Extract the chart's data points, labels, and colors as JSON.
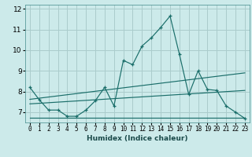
{
  "xlabel": "Humidex (Indice chaleur)",
  "bg_color": "#cceaea",
  "grid_color": "#aacccc",
  "line_color": "#1a6e6a",
  "xlim": [
    -0.5,
    23.5
  ],
  "ylim": [
    6.5,
    12.2
  ],
  "yticks": [
    7,
    8,
    9,
    10,
    11,
    12
  ],
  "xticks": [
    0,
    1,
    2,
    3,
    4,
    5,
    6,
    7,
    8,
    9,
    10,
    11,
    12,
    13,
    14,
    15,
    16,
    17,
    18,
    19,
    20,
    21,
    22,
    23
  ],
  "main_x": [
    0,
    1,
    2,
    3,
    4,
    5,
    6,
    7,
    8,
    9,
    10,
    11,
    12,
    13,
    14,
    15,
    16,
    17,
    18,
    19,
    20,
    21,
    22,
    23
  ],
  "main_y": [
    8.2,
    7.6,
    7.1,
    7.1,
    6.8,
    6.8,
    7.1,
    7.55,
    8.2,
    7.3,
    9.5,
    9.3,
    10.2,
    10.6,
    11.1,
    11.65,
    9.8,
    7.85,
    9.0,
    8.1,
    8.05,
    7.3,
    7.0,
    6.7
  ],
  "line1_x": [
    0,
    23
  ],
  "line1_y": [
    7.62,
    8.9
  ],
  "line2_x": [
    0,
    23
  ],
  "line2_y": [
    7.4,
    8.05
  ],
  "line3_x": [
    0,
    23
  ],
  "line3_y": [
    6.72,
    6.72
  ]
}
